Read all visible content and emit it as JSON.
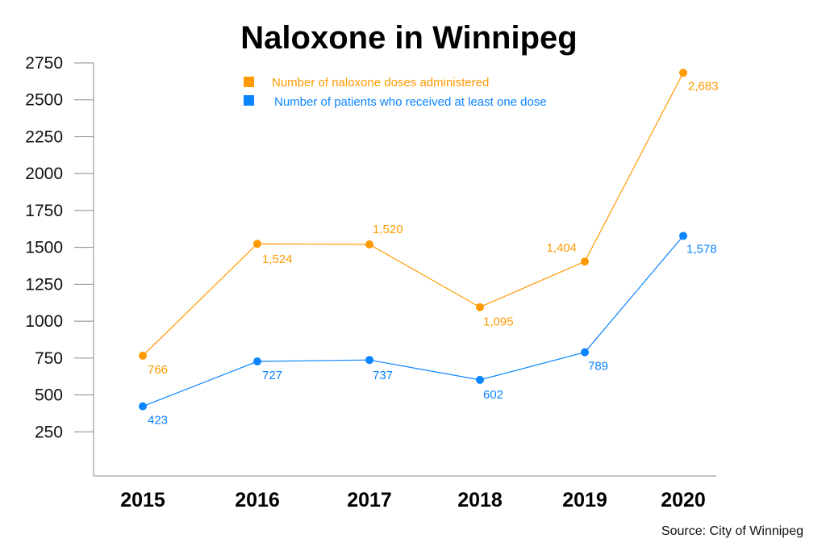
{
  "chart_data": {
    "type": "line",
    "title": "Naloxone in Winnipeg",
    "xlabel": "",
    "ylabel": "",
    "x": [
      "2015",
      "2016",
      "2017",
      "2018",
      "2019",
      "2020"
    ],
    "yticks": [
      "250",
      "500",
      "750",
      "1000",
      "1250",
      "1500",
      "1750",
      "2000",
      "2250",
      "2500",
      "2750"
    ],
    "ylim": [
      0,
      2750
    ],
    "grid": false,
    "legend_position": "top-center",
    "series": [
      {
        "name": "Number of naloxone doses administered",
        "color": "#FF9900",
        "values": [
          766,
          1524,
          1520,
          1095,
          1404,
          2683
        ],
        "labels": [
          "766",
          "1,524",
          "1,520",
          "1,095",
          "1,404",
          "2,683"
        ]
      },
      {
        "name": "Number of patients who received at least one dose",
        "color": "#0A84FF",
        "values": [
          423,
          727,
          737,
          602,
          789,
          1578
        ],
        "labels": [
          "423",
          "727",
          "737",
          "602",
          "789",
          "1,578"
        ]
      }
    ],
    "source": "Source: City of Winnipeg"
  }
}
